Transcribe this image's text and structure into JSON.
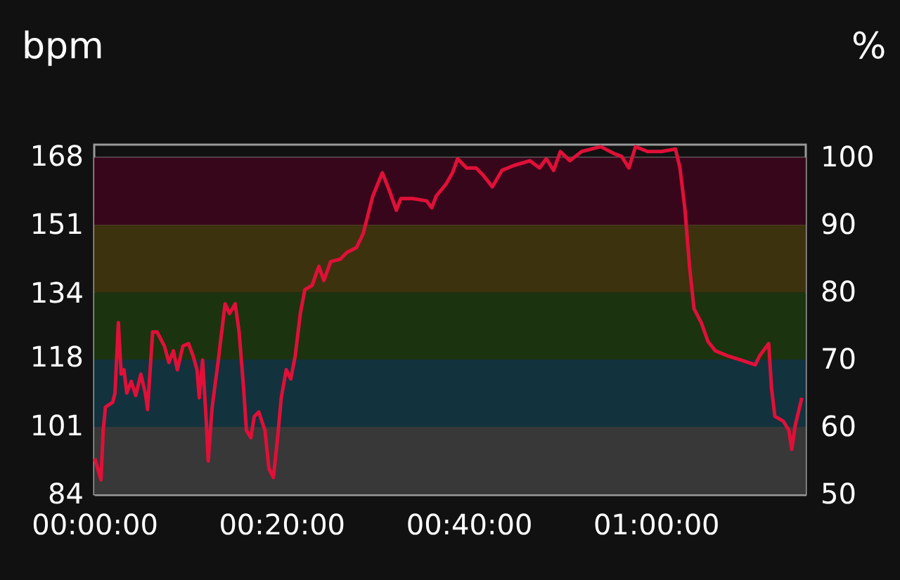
{
  "chart_data": {
    "type": "line",
    "ylabel": "bpm",
    "y2label": "%",
    "x": [
      0.001,
      0.012,
      0.016,
      0.02,
      0.033,
      0.037,
      0.043,
      0.048,
      0.053,
      0.058,
      0.066,
      0.074,
      0.083,
      0.091,
      0.095,
      0.104,
      0.112,
      0.125,
      0.133,
      0.141,
      0.148,
      0.158,
      0.168,
      0.176,
      0.183,
      0.187,
      0.193,
      0.2,
      0.203,
      0.21,
      0.221,
      0.233,
      0.241,
      0.251,
      0.258,
      0.266,
      0.271,
      0.279,
      0.285,
      0.293,
      0.304,
      0.311,
      0.319,
      0.327,
      0.333,
      0.342,
      0.35,
      0.358,
      0.367,
      0.375,
      0.388,
      0.4,
      0.409,
      0.421,
      0.438,
      0.45,
      0.467,
      0.479,
      0.496,
      0.513,
      0.526,
      0.538,
      0.546,
      0.567,
      0.592,
      0.601,
      0.609,
      0.626,
      0.638,
      0.647,
      0.663,
      0.68,
      0.692,
      0.709,
      0.726,
      0.747,
      0.776,
      0.793,
      0.805,
      0.818,
      0.83,
      0.847,
      0.868,
      0.902,
      0.927,
      0.939,
      0.952,
      0.964,
      0.985,
      1.01,
      1.035,
      1.043,
      1.052,
      1.06,
      1.068,
      1.081,
      1.093,
      1.106,
      1.127,
      1.152,
      1.177,
      1.185,
      1.201,
      1.206,
      1.212,
      1.227,
      1.237,
      1.242,
      1.248,
      1.26
    ],
    "series": [
      {
        "color": "#e01038",
        "values": [
          92.9,
          87.6,
          99.9,
          105.7,
          106.9,
          109.2,
          126.7,
          113.9,
          115.0,
          109.2,
          112.1,
          108.6,
          113.9,
          109.2,
          105.1,
          124.4,
          124.4,
          120.9,
          116.8,
          119.7,
          115.0,
          120.9,
          121.5,
          118.5,
          115.0,
          108.0,
          117.4,
          101.0,
          92.3,
          105.7,
          117.4,
          131.4,
          129.0,
          131.4,
          124.4,
          110.4,
          99.9,
          98.1,
          103.4,
          104.5,
          99.9,
          90.5,
          88.2,
          98.7,
          108.0,
          115.0,
          112.7,
          118.5,
          129.0,
          134.9,
          136.0,
          140.7,
          137.2,
          141.9,
          142.5,
          144.2,
          145.4,
          148.9,
          158.2,
          164.0,
          159.4,
          154.7,
          157.6,
          157.6,
          157.0,
          155.3,
          158.2,
          161.1,
          164.0,
          167.5,
          165.2,
          165.2,
          163.5,
          160.5,
          164.6,
          165.8,
          167.0,
          165.2,
          167.5,
          164.6,
          169.3,
          167.0,
          169.3,
          170.5,
          168.7,
          168.1,
          165.2,
          170.5,
          169.3,
          169.3,
          169.9,
          165.2,
          154.7,
          140.7,
          130.2,
          126.7,
          122.0,
          119.7,
          118.5,
          117.4,
          116.2,
          118.5,
          121.5,
          110.4,
          103.4,
          102.2,
          99.9,
          95.2,
          101.0,
          108.0
        ]
      }
    ],
    "xlim": [
      0,
      1.267
    ],
    "xticks": [
      {
        "value": 0,
        "label": "00:00:00"
      },
      {
        "value": 0.3333,
        "label": "00:20:00"
      },
      {
        "value": 0.6667,
        "label": "00:40:00"
      },
      {
        "value": 1.0,
        "label": "01:00:00"
      }
    ],
    "ylim": [
      84,
      171
    ],
    "yticks": [
      84,
      101,
      118,
      134,
      151,
      168
    ],
    "y2lim": [
      50,
      101.9
    ],
    "y2ticks": [
      50,
      60,
      70,
      80,
      90,
      100
    ],
    "bands": [
      {
        "axis": "y2",
        "from": 50,
        "to": 60,
        "color": "#383838"
      },
      {
        "axis": "y2",
        "from": 60,
        "to": 70,
        "color": "#12323e"
      },
      {
        "axis": "y2",
        "from": 70,
        "to": 80,
        "color": "#1c3310"
      },
      {
        "axis": "y2",
        "from": 80,
        "to": 90,
        "color": "#3c320e"
      },
      {
        "axis": "y2",
        "from": 90,
        "to": 100,
        "color": "#38061a"
      }
    ],
    "grid": "y"
  }
}
